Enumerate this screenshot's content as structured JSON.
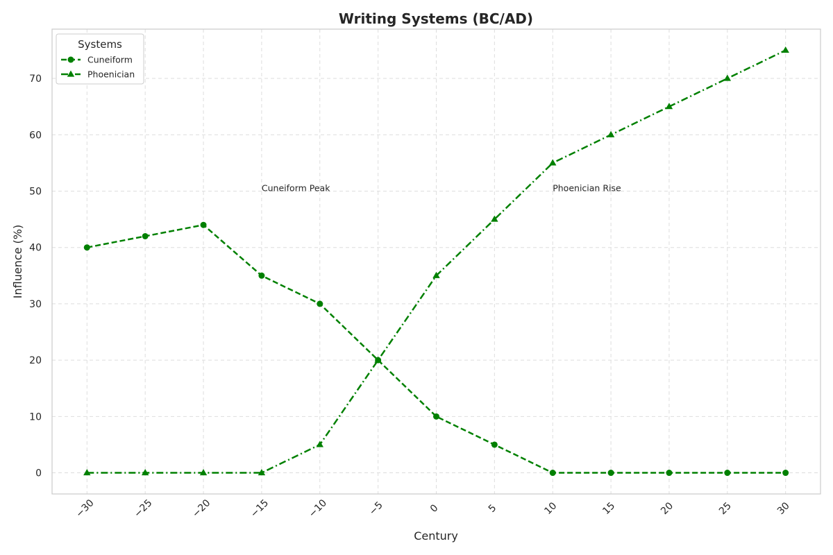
{
  "chart_data": {
    "type": "line",
    "title": "Writing Systems (BC/AD)",
    "xlabel": "Century",
    "ylabel": "Influence (%)",
    "x": [
      -30,
      -25,
      -20,
      -15,
      -10,
      -5,
      0,
      5,
      10,
      15,
      20,
      25,
      30
    ],
    "x_tick_labels": [
      "−30",
      "−25",
      "−20",
      "−15",
      "−10",
      "−5",
      "0",
      "5",
      "10",
      "15",
      "20",
      "25",
      "30"
    ],
    "y_ticks": [
      0,
      10,
      20,
      30,
      40,
      50,
      60,
      70
    ],
    "y_tick_labels": [
      "0",
      "10",
      "20",
      "30",
      "40",
      "50",
      "60",
      "70"
    ],
    "xlim": [
      -33,
      33
    ],
    "ylim": [
      -3.75,
      78.75
    ],
    "grid": true,
    "series": [
      {
        "name": "Cuneiform",
        "values": [
          40,
          42,
          44,
          35,
          30,
          20,
          10,
          5,
          0,
          0,
          0,
          0,
          0
        ],
        "color": "#008000",
        "line_style": "dashed",
        "marker": "circle"
      },
      {
        "name": "Phoenician",
        "values": [
          0,
          0,
          0,
          0,
          5,
          20,
          35,
          45,
          55,
          60,
          65,
          70,
          75
        ],
        "color": "#008000",
        "line_style": "dash-dot",
        "marker": "triangle"
      }
    ],
    "annotations": [
      {
        "text": "Cuneiform Peak",
        "x": -15,
        "y": 50
      },
      {
        "text": "Phoenician Rise",
        "x": 10,
        "y": 50
      }
    ],
    "legend": {
      "title": "Systems",
      "placement": "top-left",
      "entries": [
        "Cuneiform",
        "Phoenician"
      ]
    }
  }
}
